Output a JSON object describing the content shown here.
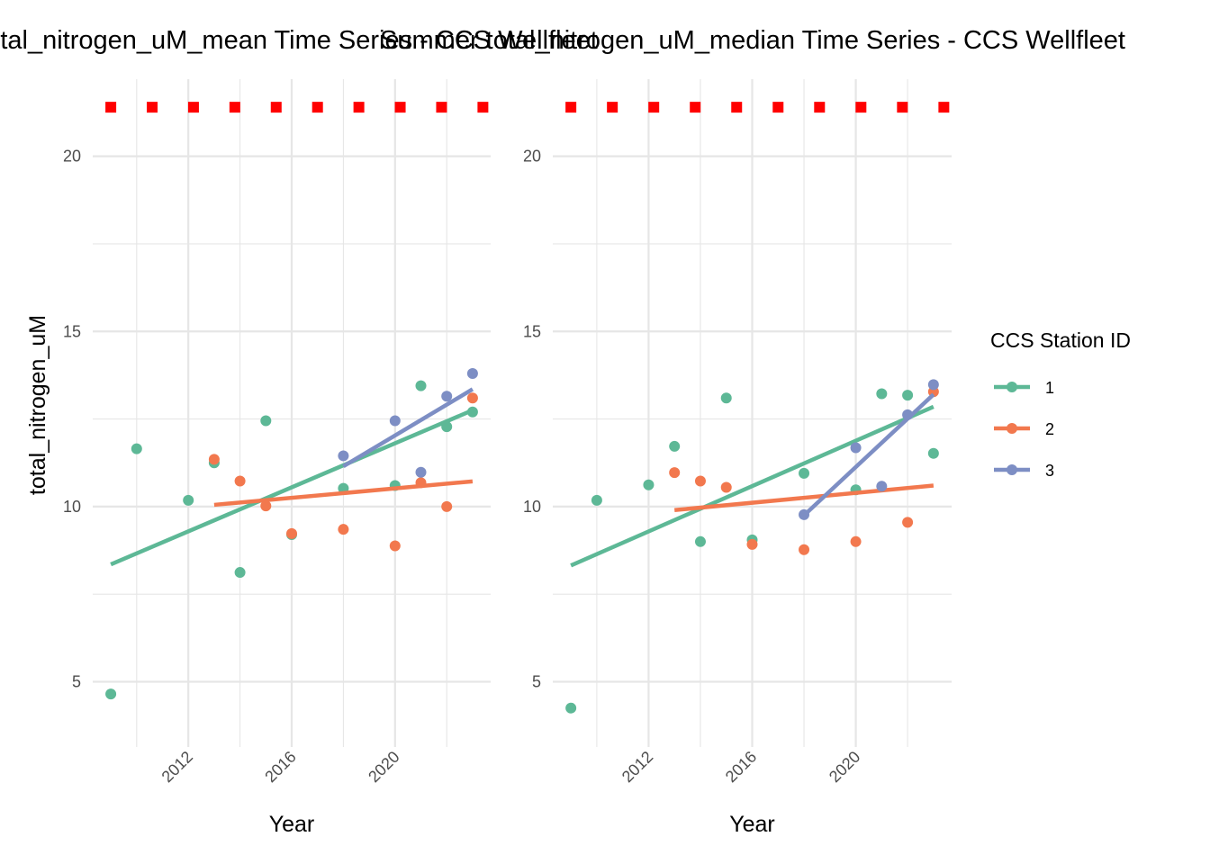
{
  "colors": {
    "station_1": "#5DB896",
    "station_2": "#F2784E",
    "station_3": "#7D8EC4",
    "marker": "#FF0000",
    "grid": "#E6E6E6"
  },
  "legend": {
    "title": "CCS Station ID",
    "entries": [
      {
        "label": "1",
        "color": "#5DB896"
      },
      {
        "label": "2",
        "color": "#F2784E"
      },
      {
        "label": "3",
        "color": "#7D8EC4"
      }
    ],
    "placement": "right"
  },
  "chart_data": [
    {
      "type": "scatter",
      "title": "total_nitrogen_uM_mean Time Series - CCS Wellfleet",
      "xlabel": "Year",
      "ylabel": "total_nitrogen_uM",
      "xlim": [
        2008.3,
        2023.7
      ],
      "ylim": [
        3.6,
        22.2
      ],
      "xticks": [
        2012,
        2016,
        2020
      ],
      "yticks": [
        5,
        10,
        15,
        20
      ],
      "grid": true,
      "marker_row": {
        "y": 21.4,
        "x": [
          2009,
          2010.6,
          2012.2,
          2013.8,
          2015.4,
          2017,
          2018.6,
          2020.2,
          2021.8,
          2023.4
        ]
      },
      "series": [
        {
          "name": "1",
          "color": "#5DB896",
          "points": [
            [
              2009,
              4.65
            ],
            [
              2010,
              11.65
            ],
            [
              2012,
              10.18
            ],
            [
              2013,
              11.25
            ],
            [
              2014,
              8.12
            ],
            [
              2015,
              12.45
            ],
            [
              2016,
              9.2
            ],
            [
              2018,
              10.52
            ],
            [
              2020,
              10.6
            ],
            [
              2021,
              13.45
            ],
            [
              2022,
              12.28
            ],
            [
              2023,
              12.7
            ]
          ],
          "trend": [
            [
              2009,
              8.35
            ],
            [
              2023,
              12.75
            ]
          ]
        },
        {
          "name": "2",
          "color": "#F2784E",
          "points": [
            [
              2013,
              11.35
            ],
            [
              2014,
              10.73
            ],
            [
              2015,
              10.02
            ],
            [
              2016,
              9.23
            ],
            [
              2018,
              9.35
            ],
            [
              2020,
              8.88
            ],
            [
              2021,
              10.68
            ],
            [
              2022,
              10.0
            ],
            [
              2023,
              13.1
            ]
          ],
          "trend": [
            [
              2013,
              10.05
            ],
            [
              2023,
              10.72
            ]
          ]
        },
        {
          "name": "3",
          "color": "#7D8EC4",
          "points": [
            [
              2018,
              11.45
            ],
            [
              2020,
              12.45
            ],
            [
              2021,
              10.98
            ],
            [
              2022,
              13.15
            ],
            [
              2023,
              13.8
            ]
          ],
          "trend": [
            [
              2018,
              11.15
            ],
            [
              2023,
              13.35
            ]
          ]
        }
      ]
    },
    {
      "type": "scatter",
      "title": "Summer total_nitrogen_uM_median Time Series - CCS Wellfleet",
      "xlabel": "Year",
      "ylabel": "",
      "xlim": [
        2008.3,
        2023.7
      ],
      "ylim": [
        3.6,
        22.2
      ],
      "xticks": [
        2012,
        2016,
        2020
      ],
      "yticks": [
        5,
        10,
        15,
        20
      ],
      "grid": true,
      "marker_row": {
        "y": 21.4,
        "x": [
          2009,
          2010.6,
          2012.2,
          2013.8,
          2015.4,
          2017,
          2018.6,
          2020.2,
          2021.8,
          2023.4
        ]
      },
      "series": [
        {
          "name": "1",
          "color": "#5DB896",
          "points": [
            [
              2009,
              4.25
            ],
            [
              2010,
              10.18
            ],
            [
              2012,
              10.62
            ],
            [
              2013,
              11.72
            ],
            [
              2014,
              9.0
            ],
            [
              2015,
              13.1
            ],
            [
              2016,
              9.05
            ],
            [
              2018,
              10.95
            ],
            [
              2020,
              10.48
            ],
            [
              2021,
              13.22
            ],
            [
              2022,
              13.18
            ],
            [
              2023,
              11.52
            ]
          ],
          "trend": [
            [
              2009,
              8.32
            ],
            [
              2023,
              12.85
            ]
          ]
        },
        {
          "name": "2",
          "color": "#F2784E",
          "points": [
            [
              2013,
              10.97
            ],
            [
              2014,
              10.73
            ],
            [
              2015,
              10.55
            ],
            [
              2016,
              8.92
            ],
            [
              2018,
              8.77
            ],
            [
              2020,
              9.0
            ],
            [
              2022,
              9.55
            ],
            [
              2023,
              13.28
            ]
          ],
          "trend": [
            [
              2013,
              9.9
            ],
            [
              2023,
              10.6
            ]
          ]
        },
        {
          "name": "3",
          "color": "#7D8EC4",
          "points": [
            [
              2018,
              9.77
            ],
            [
              2020,
              11.68
            ],
            [
              2021,
              10.58
            ],
            [
              2022,
              12.62
            ],
            [
              2023,
              13.48
            ]
          ],
          "trend": [
            [
              2018,
              9.75
            ],
            [
              2023,
              13.2
            ]
          ]
        }
      ]
    }
  ]
}
